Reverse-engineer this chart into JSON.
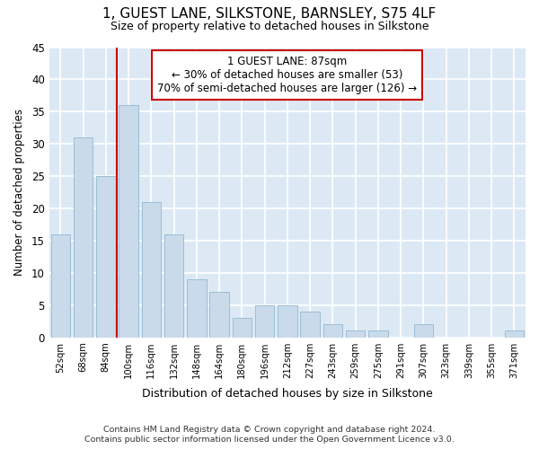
{
  "title": "1, GUEST LANE, SILKSTONE, BARNSLEY, S75 4LF",
  "subtitle": "Size of property relative to detached houses in Silkstone",
  "xlabel": "Distribution of detached houses by size in Silkstone",
  "ylabel": "Number of detached properties",
  "bin_labels": [
    "52sqm",
    "68sqm",
    "84sqm",
    "100sqm",
    "116sqm",
    "132sqm",
    "148sqm",
    "164sqm",
    "180sqm",
    "196sqm",
    "212sqm",
    "227sqm",
    "243sqm",
    "259sqm",
    "275sqm",
    "291sqm",
    "307sqm",
    "323sqm",
    "339sqm",
    "355sqm",
    "371sqm"
  ],
  "bar_values": [
    16,
    31,
    25,
    36,
    21,
    16,
    9,
    7,
    3,
    5,
    5,
    4,
    2,
    1,
    1,
    0,
    2,
    0,
    0,
    0,
    1
  ],
  "bar_color": "#c9daea",
  "bar_edge_color": "#9bbdd4",
  "annotation_line1": "1 GUEST LANE: 87sqm",
  "annotation_line2": "← 30% of detached houses are smaller (53)",
  "annotation_line3": "70% of semi-detached houses are larger (126) →",
  "annotation_box_color": "#ffffff",
  "annotation_box_edge": "#cc0000",
  "red_line_color": "#cc0000",
  "ylim": [
    0,
    45
  ],
  "yticks": [
    0,
    5,
    10,
    15,
    20,
    25,
    30,
    35,
    40,
    45
  ],
  "footer_line1": "Contains HM Land Registry data © Crown copyright and database right 2024.",
  "footer_line2": "Contains public sector information licensed under the Open Government Licence v3.0.",
  "fig_bg_color": "#ffffff",
  "plot_bg_color": "#dce9f5",
  "grid_color": "#ffffff"
}
